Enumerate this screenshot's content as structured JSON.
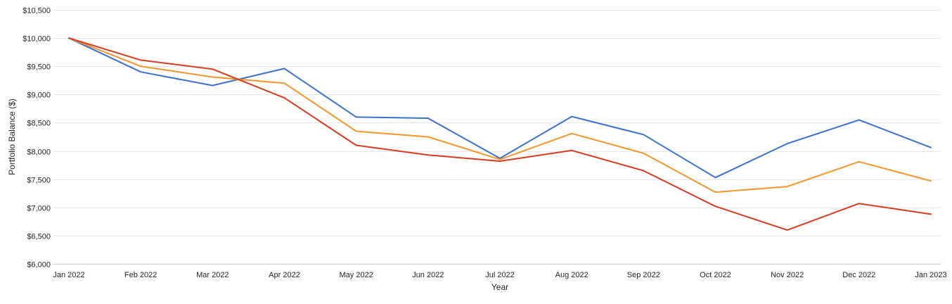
{
  "chart_data": {
    "type": "line",
    "title": "",
    "xlabel": "Year",
    "ylabel": "Portfolio Balance ($)",
    "categories": [
      "Jan 2022",
      "Feb 2022",
      "Mar 2022",
      "Apr 2022",
      "May 2022",
      "Jun 2022",
      "Jul 2022",
      "Aug 2022",
      "Sep 2022",
      "Oct 2022",
      "Nov 2022",
      "Dec 2022",
      "Jan 2023"
    ],
    "ylim": [
      6000,
      10500
    ],
    "yticks": [
      6000,
      6500,
      7000,
      7500,
      8000,
      8500,
      9000,
      9500,
      10000,
      10500
    ],
    "ytick_labels": [
      "$6,000",
      "$6,500",
      "$7,000",
      "$7,500",
      "$8,000",
      "$8,500",
      "$9,000",
      "$9,500",
      "$10,000",
      "$10,500"
    ],
    "grid": true,
    "legend": "none",
    "series": [
      {
        "color": "#3a6fcf",
        "values": [
          10000,
          9400,
          9160,
          9460,
          8600,
          8580,
          7870,
          8610,
          8290,
          7530,
          8130,
          8550,
          8060
        ]
      },
      {
        "color": "#f5962a",
        "values": [
          10000,
          9500,
          9310,
          9200,
          8350,
          8250,
          7850,
          8310,
          7960,
          7270,
          7370,
          7810,
          7470
        ]
      },
      {
        "color": "#d63a1f",
        "values": [
          10000,
          9610,
          9450,
          8940,
          8100,
          7930,
          7820,
          8010,
          7650,
          7020,
          6600,
          7070,
          6880
        ]
      }
    ]
  }
}
